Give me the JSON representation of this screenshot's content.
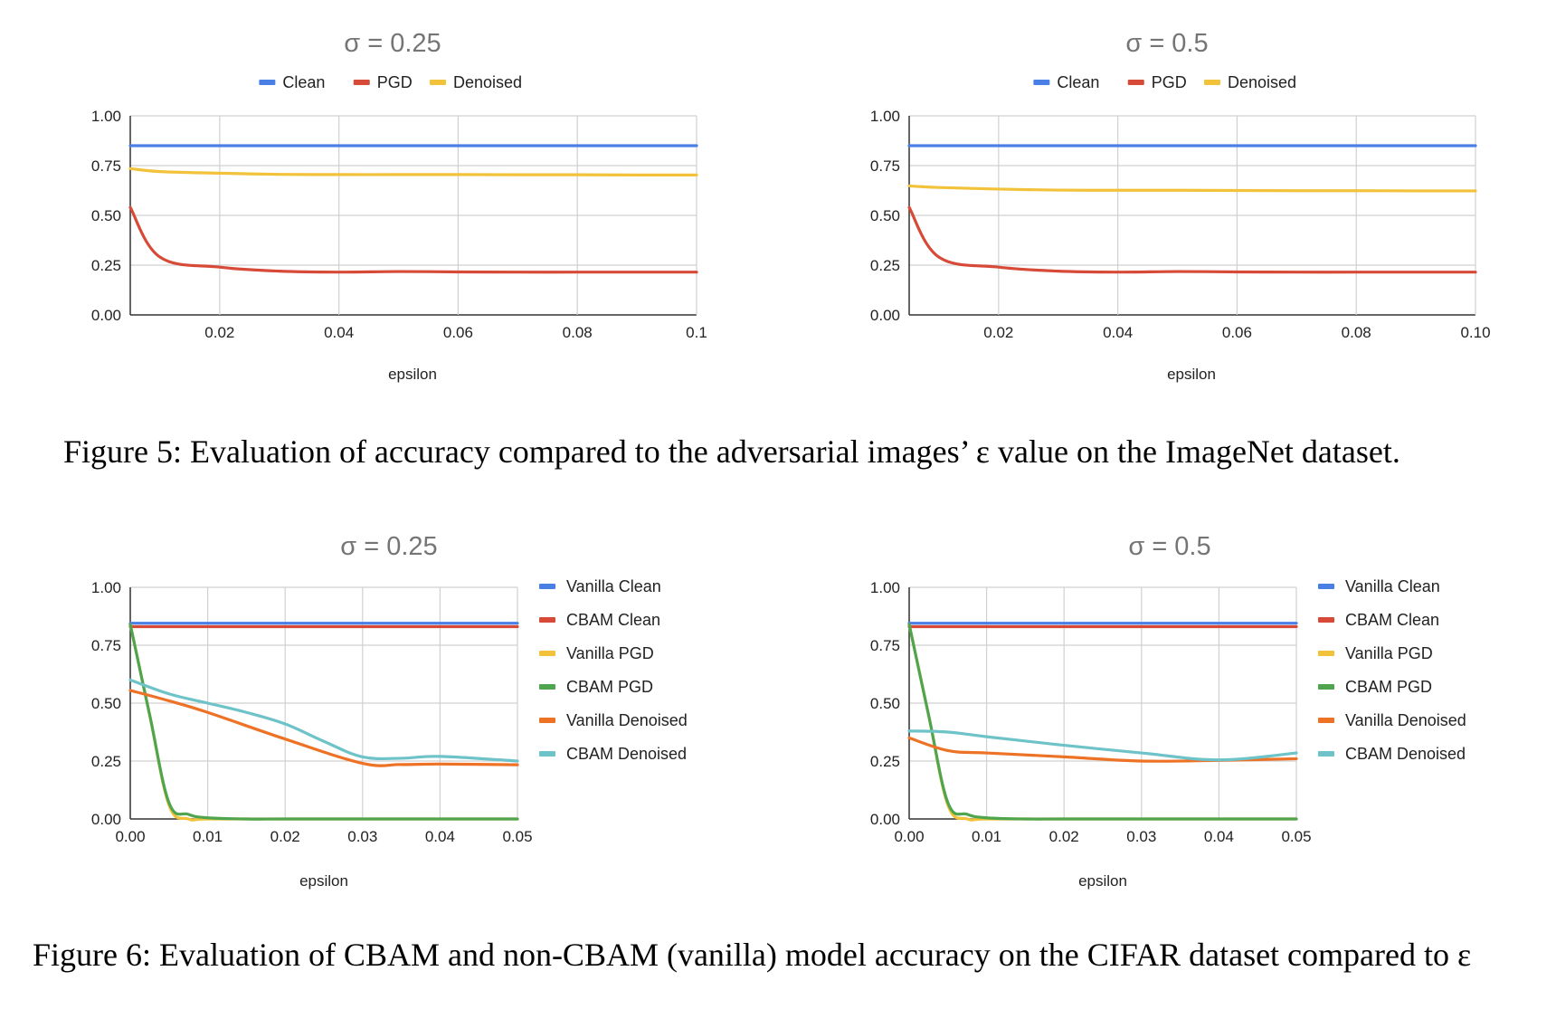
{
  "figure5": {
    "caption": "Figure 5: Evaluation of accuracy compared to the adversarial images’ ε value on the ImageNet dataset."
  },
  "figure6": {
    "caption": "Figure 6: Evaluation of CBAM and non-CBAM (vanilla) model accuracy on the CIFAR dataset compared to ε"
  },
  "colors": {
    "blue": "#4a7fe6",
    "red": "#d64a37",
    "yellow": "#f2c23a",
    "green": "#4ea54e",
    "orange": "#ee7226",
    "teal": "#6dc3c8"
  },
  "chart_data": [
    {
      "type": "line",
      "title": "σ = 0.25",
      "xlabel": "epsilon",
      "ylabel": "",
      "xlim": [
        0.005,
        0.1
      ],
      "ylim": [
        0,
        1
      ],
      "x_ticks": [
        0.02,
        0.04,
        0.06,
        0.08,
        0.1
      ],
      "x_tick_labels": [
        "0.02",
        "0.04",
        "0.06",
        "0.08",
        "0.1"
      ],
      "y_ticks": [
        0,
        0.25,
        0.5,
        0.75,
        1
      ],
      "y_tick_labels": [
        "0.00",
        "0.25",
        "0.50",
        "0.75",
        "1.00"
      ],
      "grid": true,
      "legend": "top",
      "series": [
        {
          "name": "Clean",
          "color": "#4a7fe6",
          "x": [
            0.005,
            0.01,
            0.02,
            0.03,
            0.04,
            0.05,
            0.06,
            0.07,
            0.08,
            0.09,
            0.1
          ],
          "values": [
            0.85,
            0.85,
            0.85,
            0.85,
            0.85,
            0.85,
            0.85,
            0.85,
            0.85,
            0.85,
            0.85
          ]
        },
        {
          "name": "PGD",
          "color": "#d64a37",
          "x": [
            0.005,
            0.01,
            0.02,
            0.03,
            0.04,
            0.05,
            0.06,
            0.07,
            0.08,
            0.09,
            0.1
          ],
          "values": [
            0.54,
            0.29,
            0.24,
            0.22,
            0.215,
            0.218,
            0.216,
            0.215,
            0.215,
            0.215,
            0.215
          ]
        },
        {
          "name": "Denoised",
          "color": "#f2c23a",
          "x": [
            0.005,
            0.01,
            0.02,
            0.03,
            0.04,
            0.05,
            0.06,
            0.07,
            0.08,
            0.09,
            0.1
          ],
          "values": [
            0.735,
            0.72,
            0.712,
            0.706,
            0.705,
            0.705,
            0.705,
            0.704,
            0.704,
            0.703,
            0.703
          ]
        }
      ]
    },
    {
      "type": "line",
      "title": "σ = 0.5",
      "xlabel": "epsilon",
      "ylabel": "",
      "xlim": [
        0.005,
        0.1
      ],
      "ylim": [
        0,
        1
      ],
      "x_ticks": [
        0.02,
        0.04,
        0.06,
        0.08,
        0.1
      ],
      "x_tick_labels": [
        "0.02",
        "0.04",
        "0.06",
        "0.08",
        "0.10"
      ],
      "y_ticks": [
        0,
        0.25,
        0.5,
        0.75,
        1
      ],
      "y_tick_labels": [
        "0.00",
        "0.25",
        "0.50",
        "0.75",
        "1.00"
      ],
      "grid": true,
      "legend": "top",
      "series": [
        {
          "name": "Clean",
          "color": "#4a7fe6",
          "x": [
            0.005,
            0.01,
            0.02,
            0.03,
            0.04,
            0.05,
            0.06,
            0.07,
            0.08,
            0.09,
            0.1
          ],
          "values": [
            0.85,
            0.85,
            0.85,
            0.85,
            0.85,
            0.85,
            0.85,
            0.85,
            0.85,
            0.85,
            0.85
          ]
        },
        {
          "name": "PGD",
          "color": "#d64a37",
          "x": [
            0.005,
            0.01,
            0.02,
            0.03,
            0.04,
            0.05,
            0.06,
            0.07,
            0.08,
            0.09,
            0.1
          ],
          "values": [
            0.54,
            0.29,
            0.24,
            0.22,
            0.215,
            0.218,
            0.216,
            0.215,
            0.215,
            0.215,
            0.215
          ]
        },
        {
          "name": "Denoised",
          "color": "#f2c23a",
          "x": [
            0.005,
            0.01,
            0.02,
            0.03,
            0.04,
            0.05,
            0.06,
            0.07,
            0.08,
            0.09,
            0.1
          ],
          "values": [
            0.648,
            0.64,
            0.632,
            0.627,
            0.626,
            0.626,
            0.625,
            0.624,
            0.624,
            0.623,
            0.623
          ]
        }
      ]
    },
    {
      "type": "line",
      "title": "σ = 0.25",
      "xlabel": "epsilon",
      "ylabel": "",
      "xlim": [
        0,
        0.05
      ],
      "ylim": [
        0,
        1
      ],
      "x_ticks": [
        0,
        0.01,
        0.02,
        0.03,
        0.04,
        0.05
      ],
      "x_tick_labels": [
        "0.00",
        "0.01",
        "0.02",
        "0.03",
        "0.04",
        "0.05"
      ],
      "y_ticks": [
        0,
        0.25,
        0.5,
        0.75,
        1
      ],
      "y_tick_labels": [
        "0.00",
        "0.25",
        "0.50",
        "0.75",
        "1.00"
      ],
      "grid": true,
      "legend": "right",
      "series": [
        {
          "name": "Vanilla Clean",
          "color": "#4a7fe6",
          "x": [
            0,
            0.01,
            0.02,
            0.03,
            0.04,
            0.05
          ],
          "values": [
            0.845,
            0.845,
            0.845,
            0.845,
            0.845,
            0.845
          ]
        },
        {
          "name": "CBAM Clean",
          "color": "#d64a37",
          "x": [
            0,
            0.01,
            0.02,
            0.03,
            0.04,
            0.05
          ],
          "values": [
            0.83,
            0.83,
            0.83,
            0.83,
            0.83,
            0.83
          ]
        },
        {
          "name": "Vanilla PGD",
          "color": "#f2c23a",
          "x": [
            0,
            0.0025,
            0.005,
            0.0075,
            0.01,
            0.02,
            0.03,
            0.04,
            0.05
          ],
          "values": [
            0.84,
            0.45,
            0.06,
            0.0,
            0.0,
            0.0,
            0.0,
            0.0,
            0.0
          ]
        },
        {
          "name": "CBAM PGD",
          "color": "#4ea54e",
          "x": [
            0,
            0.0025,
            0.005,
            0.0075,
            0.01,
            0.015,
            0.02,
            0.03,
            0.04,
            0.05
          ],
          "values": [
            0.84,
            0.45,
            0.07,
            0.02,
            0.005,
            0.0,
            0.0,
            0.0,
            0.0,
            0.0
          ]
        },
        {
          "name": "Vanilla Denoised",
          "color": "#ee7226",
          "x": [
            0,
            0.005,
            0.01,
            0.02,
            0.03,
            0.035,
            0.04,
            0.05
          ],
          "values": [
            0.555,
            0.51,
            0.46,
            0.345,
            0.24,
            0.235,
            0.237,
            0.234
          ]
        },
        {
          "name": "CBAM Denoised",
          "color": "#6dc3c8",
          "x": [
            0,
            0.005,
            0.01,
            0.015,
            0.02,
            0.025,
            0.03,
            0.035,
            0.04,
            0.05
          ],
          "values": [
            0.6,
            0.54,
            0.5,
            0.46,
            0.41,
            0.335,
            0.268,
            0.262,
            0.27,
            0.25
          ]
        }
      ]
    },
    {
      "type": "line",
      "title": "σ = 0.5",
      "xlabel": "epsilon",
      "ylabel": "",
      "xlim": [
        0,
        0.05
      ],
      "ylim": [
        0,
        1
      ],
      "x_ticks": [
        0,
        0.01,
        0.02,
        0.03,
        0.04,
        0.05
      ],
      "x_tick_labels": [
        "0.00",
        "0.01",
        "0.02",
        "0.03",
        "0.04",
        "0.05"
      ],
      "y_ticks": [
        0,
        0.25,
        0.5,
        0.75,
        1
      ],
      "y_tick_labels": [
        "0.00",
        "0.25",
        "0.50",
        "0.75",
        "1.00"
      ],
      "grid": true,
      "legend": "right",
      "series": [
        {
          "name": "Vanilla Clean",
          "color": "#4a7fe6",
          "x": [
            0,
            0.01,
            0.02,
            0.03,
            0.04,
            0.05
          ],
          "values": [
            0.845,
            0.845,
            0.845,
            0.845,
            0.845,
            0.845
          ]
        },
        {
          "name": "CBAM Clean",
          "color": "#d64a37",
          "x": [
            0,
            0.01,
            0.02,
            0.03,
            0.04,
            0.05
          ],
          "values": [
            0.83,
            0.83,
            0.83,
            0.83,
            0.83,
            0.83
          ]
        },
        {
          "name": "Vanilla PGD",
          "color": "#f2c23a",
          "x": [
            0,
            0.0025,
            0.005,
            0.0075,
            0.01,
            0.02,
            0.03,
            0.04,
            0.05
          ],
          "values": [
            0.84,
            0.45,
            0.06,
            0.0,
            0.0,
            0.0,
            0.0,
            0.0,
            0.0
          ]
        },
        {
          "name": "CBAM PGD",
          "color": "#4ea54e",
          "x": [
            0,
            0.0025,
            0.005,
            0.0075,
            0.01,
            0.015,
            0.02,
            0.03,
            0.04,
            0.05
          ],
          "values": [
            0.84,
            0.45,
            0.07,
            0.02,
            0.005,
            0.0,
            0.0,
            0.0,
            0.0,
            0.0
          ]
        },
        {
          "name": "Vanilla Denoised",
          "color": "#ee7226",
          "x": [
            0,
            0.005,
            0.01,
            0.02,
            0.03,
            0.04,
            0.05
          ],
          "values": [
            0.35,
            0.295,
            0.285,
            0.268,
            0.25,
            0.253,
            0.26
          ]
        },
        {
          "name": "CBAM Denoised",
          "color": "#6dc3c8",
          "x": [
            0,
            0.005,
            0.01,
            0.02,
            0.03,
            0.04,
            0.05
          ],
          "values": [
            0.38,
            0.375,
            0.355,
            0.318,
            0.285,
            0.255,
            0.285
          ]
        }
      ]
    }
  ]
}
